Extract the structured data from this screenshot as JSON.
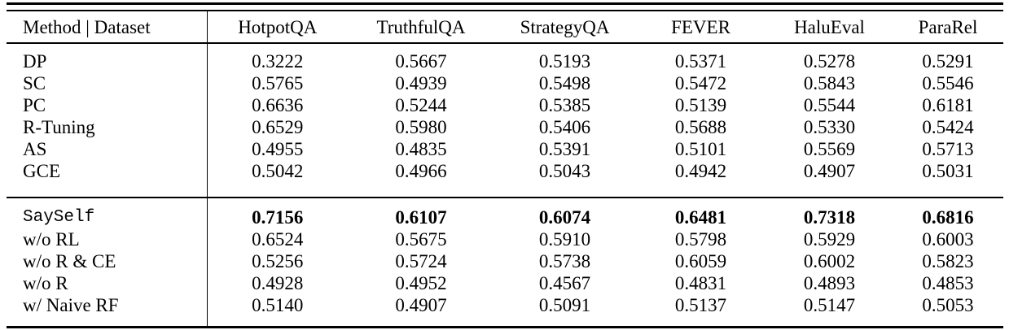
{
  "page": {
    "background": "#ffffff"
  },
  "table": {
    "colors": {
      "text": "#000000",
      "rules": "#000000",
      "background": "#ffffff"
    },
    "header": {
      "method_column_label": "Method | Dataset",
      "dataset_columns": [
        "HotpotQA",
        "TruthfulQA",
        "StrategyQA",
        "FEVER",
        "HaluEval",
        "ParaRel"
      ]
    },
    "groups": [
      {
        "name": "baselines",
        "rows": [
          {
            "method": "DP",
            "mono": false,
            "bold": false,
            "values": [
              "0.3222",
              "0.5667",
              "0.5193",
              "0.5371",
              "0.5278",
              "0.5291"
            ]
          },
          {
            "method": "SC",
            "mono": false,
            "bold": false,
            "values": [
              "0.5765",
              "0.4939",
              "0.5498",
              "0.5472",
              "0.5843",
              "0.5546"
            ]
          },
          {
            "method": "PC",
            "mono": false,
            "bold": false,
            "values": [
              "0.6636",
              "0.5244",
              "0.5385",
              "0.5139",
              "0.5544",
              "0.6181"
            ]
          },
          {
            "method": "R-Tuning",
            "mono": false,
            "bold": false,
            "values": [
              "0.6529",
              "0.5980",
              "0.5406",
              "0.5688",
              "0.5330",
              "0.5424"
            ]
          },
          {
            "method": "AS",
            "mono": false,
            "bold": false,
            "values": [
              "0.4955",
              "0.4835",
              "0.5391",
              "0.5101",
              "0.5569",
              "0.5713"
            ]
          },
          {
            "method": "GCE",
            "mono": false,
            "bold": false,
            "values": [
              "0.5042",
              "0.4966",
              "0.5043",
              "0.4942",
              "0.4907",
              "0.5031"
            ]
          }
        ]
      },
      {
        "name": "sayself-and-ablations",
        "rows": [
          {
            "method": "SaySelf",
            "mono": true,
            "bold": true,
            "values": [
              "0.7156",
              "0.6107",
              "0.6074",
              "0.6481",
              "0.7318",
              "0.6816"
            ]
          },
          {
            "method": "w/o RL",
            "mono": false,
            "bold": false,
            "values": [
              "0.6524",
              "0.5675",
              "0.5910",
              "0.5798",
              "0.5929",
              "0.6003"
            ]
          },
          {
            "method": "w/o R & CE",
            "mono": false,
            "bold": false,
            "values": [
              "0.5256",
              "0.5724",
              "0.5738",
              "0.6059",
              "0.6002",
              "0.5823"
            ]
          },
          {
            "method": "w/o R",
            "mono": false,
            "bold": false,
            "values": [
              "0.4928",
              "0.4952",
              "0.4567",
              "0.4831",
              "0.4893",
              "0.4853"
            ]
          },
          {
            "method": "w/ Naive RF",
            "mono": false,
            "bold": false,
            "values": [
              "0.5140",
              "0.4907",
              "0.5091",
              "0.5137",
              "0.5147",
              "0.5053"
            ]
          }
        ]
      }
    ]
  }
}
